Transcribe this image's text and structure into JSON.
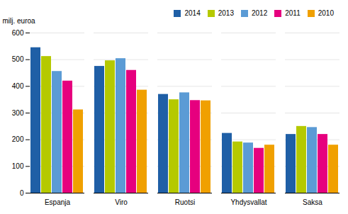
{
  "chart_data": {
    "type": "bar",
    "categories": [
      "Espanja",
      "Viro",
      "Ruotsi",
      "Yhdysvallat",
      "Saksa"
    ],
    "series": [
      {
        "name": "2014",
        "color": "#1f5fa6",
        "values": [
          545,
          475,
          370,
          224,
          220
        ]
      },
      {
        "name": "2013",
        "color": "#b5c900",
        "values": [
          512,
          496,
          350,
          192,
          250
        ]
      },
      {
        "name": "2012",
        "color": "#5b9bd5",
        "values": [
          456,
          504,
          376,
          188,
          246
        ]
      },
      {
        "name": "2011",
        "color": "#e6007e",
        "values": [
          420,
          460,
          347,
          168,
          220
        ]
      },
      {
        "name": "2010",
        "color": "#f0a000",
        "values": [
          312,
          386,
          346,
          180,
          180
        ]
      }
    ],
    "ylabel": "milj. euroa",
    "ylim": [
      0,
      600
    ],
    "yticks": [
      0,
      100,
      200,
      300,
      400,
      500,
      600
    ],
    "grid": true,
    "legend": "upper right"
  }
}
